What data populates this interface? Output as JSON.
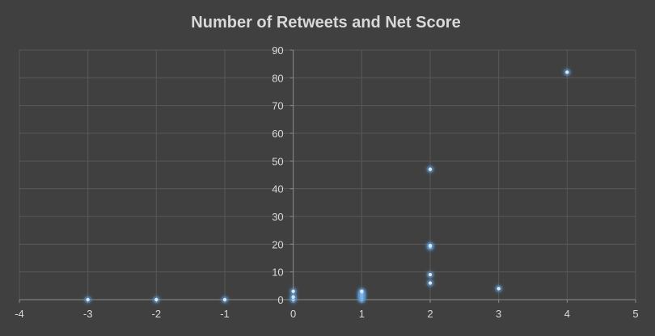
{
  "chart_data": {
    "type": "scatter",
    "title": "Number of Retweets and Net Score",
    "xlabel": "",
    "ylabel": "",
    "xlim": [
      -4,
      5
    ],
    "ylim": [
      0,
      90
    ],
    "x_ticks": [
      "-4",
      "-3",
      "-2",
      "-1",
      "0",
      "1",
      "2",
      "3",
      "4",
      "5"
    ],
    "y_ticks": [
      "0",
      "10",
      "20",
      "30",
      "40",
      "50",
      "60",
      "70",
      "80",
      "90"
    ],
    "grid": true,
    "legend": "none",
    "marker_color": "#5b9bd5",
    "points": [
      {
        "x": -3,
        "y": 0
      },
      {
        "x": -2,
        "y": 0
      },
      {
        "x": -1,
        "y": 0
      },
      {
        "x": 0,
        "y": 0
      },
      {
        "x": 0,
        "y": 1
      },
      {
        "x": 0,
        "y": 3
      },
      {
        "x": 1,
        "y": 0
      },
      {
        "x": 1,
        "y": 0.5
      },
      {
        "x": 1,
        "y": 1
      },
      {
        "x": 1,
        "y": 1.5
      },
      {
        "x": 1,
        "y": 2
      },
      {
        "x": 1,
        "y": 2.5
      },
      {
        "x": 1,
        "y": 3
      },
      {
        "x": 2,
        "y": 6
      },
      {
        "x": 2,
        "y": 9
      },
      {
        "x": 2,
        "y": 19
      },
      {
        "x": 2,
        "y": 19.5
      },
      {
        "x": 2,
        "y": 47
      },
      {
        "x": 3,
        "y": 4
      },
      {
        "x": 4,
        "y": 82
      }
    ]
  }
}
